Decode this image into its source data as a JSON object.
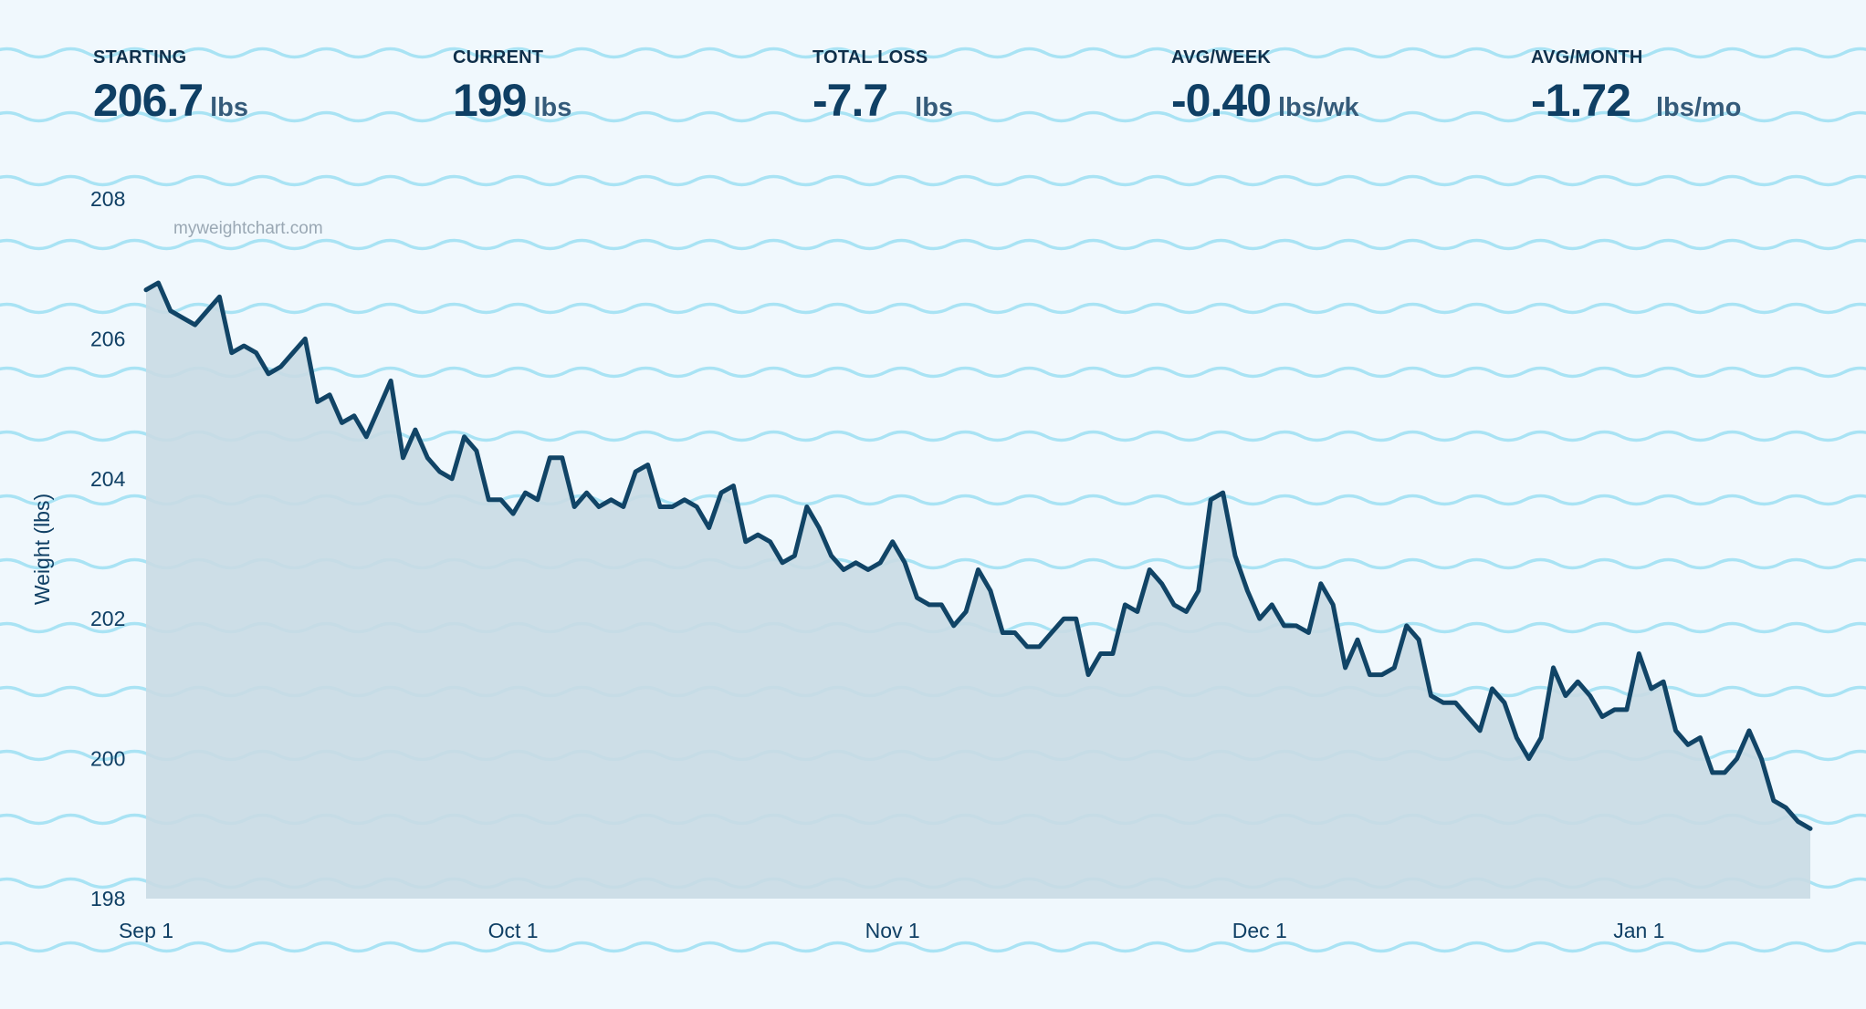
{
  "stats": [
    {
      "label": "STARTING",
      "value": "206.7",
      "unit": "lbs"
    },
    {
      "label": "CURRENT",
      "value": "199",
      "unit": "lbs"
    },
    {
      "label": "TOTAL LOSS",
      "value": "-7.7",
      "unit": "lbs"
    },
    {
      "label": "AVG/WEEK",
      "value": "-0.40",
      "unit": "lbs/wk"
    },
    {
      "label": "AVG/MONTH",
      "value": "-1.72",
      "unit": "lbs/mo"
    }
  ],
  "watermark": "myweightchart.com",
  "colors": {
    "background": "#f0f8fd",
    "waves": "#a9e3f4",
    "line": "#114466",
    "fill": "#c9dae4",
    "text": "#0f3f64"
  },
  "chart_data": {
    "type": "area",
    "title": "",
    "xlabel": "",
    "ylabel": "Weight (lbs)",
    "ylim": [
      198,
      208
    ],
    "yticks": [
      198,
      200,
      202,
      204,
      206,
      208
    ],
    "xticks": [
      {
        "date": "2023-09-01",
        "label": "Sep 1"
      },
      {
        "date": "2023-10-01",
        "label": "Oct 1"
      },
      {
        "date": "2023-11-01",
        "label": "Nov 1"
      },
      {
        "date": "2023-12-01",
        "label": "Dec 1"
      },
      {
        "date": "2024-01-01",
        "label": "Jan 1"
      }
    ],
    "grid": false,
    "series": [
      {
        "points": [
          [
            "2023-09-01",
            206.7
          ],
          [
            "2023-09-02",
            206.8
          ],
          [
            "2023-09-03",
            206.4
          ],
          [
            "2023-09-04",
            206.3
          ],
          [
            "2023-09-05",
            206.2
          ],
          [
            "2023-09-06",
            206.4
          ],
          [
            "2023-09-07",
            206.6
          ],
          [
            "2023-09-08",
            205.8
          ],
          [
            "2023-09-09",
            205.9
          ],
          [
            "2023-09-10",
            205.8
          ],
          [
            "2023-09-11",
            205.5
          ],
          [
            "2023-09-12",
            205.6
          ],
          [
            "2023-09-13",
            205.8
          ],
          [
            "2023-09-14",
            206.0
          ],
          [
            "2023-09-15",
            205.1
          ],
          [
            "2023-09-16",
            205.2
          ],
          [
            "2023-09-17",
            204.8
          ],
          [
            "2023-09-18",
            204.9
          ],
          [
            "2023-09-19",
            204.6
          ],
          [
            "2023-09-20",
            205.0
          ],
          [
            "2023-09-21",
            205.4
          ],
          [
            "2023-09-22",
            204.3
          ],
          [
            "2023-09-23",
            204.7
          ],
          [
            "2023-09-24",
            204.3
          ],
          [
            "2023-09-25",
            204.1
          ],
          [
            "2023-09-26",
            204.0
          ],
          [
            "2023-09-27",
            204.6
          ],
          [
            "2023-09-28",
            204.4
          ],
          [
            "2023-09-29",
            203.7
          ],
          [
            "2023-09-30",
            203.7
          ],
          [
            "2023-10-01",
            203.5
          ],
          [
            "2023-10-02",
            203.8
          ],
          [
            "2023-10-03",
            203.7
          ],
          [
            "2023-10-04",
            204.3
          ],
          [
            "2023-10-05",
            204.3
          ],
          [
            "2023-10-06",
            203.6
          ],
          [
            "2023-10-07",
            203.8
          ],
          [
            "2023-10-08",
            203.6
          ],
          [
            "2023-10-09",
            203.7
          ],
          [
            "2023-10-10",
            203.6
          ],
          [
            "2023-10-11",
            204.1
          ],
          [
            "2023-10-12",
            204.2
          ],
          [
            "2023-10-13",
            203.6
          ],
          [
            "2023-10-14",
            203.6
          ],
          [
            "2023-10-15",
            203.7
          ],
          [
            "2023-10-16",
            203.6
          ],
          [
            "2023-10-17",
            203.3
          ],
          [
            "2023-10-18",
            203.8
          ],
          [
            "2023-10-19",
            203.9
          ],
          [
            "2023-10-20",
            203.1
          ],
          [
            "2023-10-21",
            203.2
          ],
          [
            "2023-10-22",
            203.1
          ],
          [
            "2023-10-23",
            202.8
          ],
          [
            "2023-10-24",
            202.9
          ],
          [
            "2023-10-25",
            203.6
          ],
          [
            "2023-10-26",
            203.3
          ],
          [
            "2023-10-27",
            202.9
          ],
          [
            "2023-10-28",
            202.7
          ],
          [
            "2023-10-29",
            202.8
          ],
          [
            "2023-10-30",
            202.7
          ],
          [
            "2023-10-31",
            202.8
          ],
          [
            "2023-11-01",
            203.1
          ],
          [
            "2023-11-02",
            202.8
          ],
          [
            "2023-11-03",
            202.3
          ],
          [
            "2023-11-04",
            202.2
          ],
          [
            "2023-11-05",
            202.2
          ],
          [
            "2023-11-06",
            201.9
          ],
          [
            "2023-11-07",
            202.1
          ],
          [
            "2023-11-08",
            202.7
          ],
          [
            "2023-11-09",
            202.4
          ],
          [
            "2023-11-10",
            201.8
          ],
          [
            "2023-11-11",
            201.8
          ],
          [
            "2023-11-12",
            201.6
          ],
          [
            "2023-11-13",
            201.6
          ],
          [
            "2023-11-14",
            201.8
          ],
          [
            "2023-11-15",
            202.0
          ],
          [
            "2023-11-16",
            202.0
          ],
          [
            "2023-11-17",
            201.2
          ],
          [
            "2023-11-18",
            201.5
          ],
          [
            "2023-11-19",
            201.5
          ],
          [
            "2023-11-20",
            202.2
          ],
          [
            "2023-11-21",
            202.1
          ],
          [
            "2023-11-22",
            202.7
          ],
          [
            "2023-11-23",
            202.5
          ],
          [
            "2023-11-24",
            202.2
          ],
          [
            "2023-11-25",
            202.1
          ],
          [
            "2023-11-26",
            202.4
          ],
          [
            "2023-11-27",
            203.7
          ],
          [
            "2023-11-28",
            203.8
          ],
          [
            "2023-11-29",
            202.9
          ],
          [
            "2023-11-30",
            202.4
          ],
          [
            "2023-12-01",
            202.0
          ],
          [
            "2023-12-02",
            202.2
          ],
          [
            "2023-12-03",
            201.9
          ],
          [
            "2023-12-04",
            201.9
          ],
          [
            "2023-12-05",
            201.8
          ],
          [
            "2023-12-06",
            202.5
          ],
          [
            "2023-12-07",
            202.2
          ],
          [
            "2023-12-08",
            201.3
          ],
          [
            "2023-12-09",
            201.7
          ],
          [
            "2023-12-10",
            201.2
          ],
          [
            "2023-12-11",
            201.2
          ],
          [
            "2023-12-12",
            201.3
          ],
          [
            "2023-12-13",
            201.9
          ],
          [
            "2023-12-14",
            201.7
          ],
          [
            "2023-12-15",
            200.9
          ],
          [
            "2023-12-16",
            200.8
          ],
          [
            "2023-12-17",
            200.8
          ],
          [
            "2023-12-18",
            200.6
          ],
          [
            "2023-12-19",
            200.4
          ],
          [
            "2023-12-20",
            201.0
          ],
          [
            "2023-12-21",
            200.8
          ],
          [
            "2023-12-22",
            200.3
          ],
          [
            "2023-12-23",
            200.0
          ],
          [
            "2023-12-24",
            200.3
          ],
          [
            "2023-12-25",
            201.3
          ],
          [
            "2023-12-26",
            200.9
          ],
          [
            "2023-12-27",
            201.1
          ],
          [
            "2023-12-28",
            200.9
          ],
          [
            "2023-12-29",
            200.6
          ],
          [
            "2023-12-30",
            200.7
          ],
          [
            "2023-12-31",
            200.7
          ],
          [
            "2024-01-01",
            201.5
          ],
          [
            "2024-01-02",
            201.0
          ],
          [
            "2024-01-03",
            201.1
          ],
          [
            "2024-01-04",
            200.4
          ],
          [
            "2024-01-05",
            200.2
          ],
          [
            "2024-01-06",
            200.3
          ],
          [
            "2024-01-07",
            199.8
          ],
          [
            "2024-01-08",
            199.8
          ],
          [
            "2024-01-09",
            200.0
          ],
          [
            "2024-01-10",
            200.4
          ],
          [
            "2024-01-11",
            200.0
          ],
          [
            "2024-01-12",
            199.4
          ],
          [
            "2024-01-13",
            199.3
          ],
          [
            "2024-01-14",
            199.1
          ],
          [
            "2024-01-15",
            199.0
          ]
        ]
      }
    ]
  }
}
